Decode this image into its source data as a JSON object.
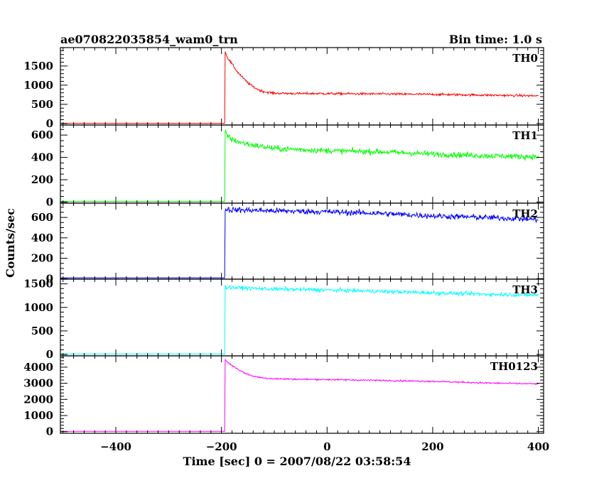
{
  "header": {
    "title": "ae070822035854_wam0_trn",
    "bin_time": "Bin time: 1.0 s"
  },
  "x_axis": {
    "label": "Time [sec] 0 = 2007/08/22 03:58:54",
    "range": [
      -505,
      410
    ],
    "major_ticks": [
      -400,
      -200,
      0,
      200,
      400
    ],
    "minor_step": 20
  },
  "y_axis": {
    "label": "Counts/sec"
  },
  "chart_data": {
    "type": "line",
    "title": "ae070822035854_wam0_trn",
    "xlabel": "Time [sec] 0 = 2007/08/22 03:58:54",
    "ylabel": "Counts/sec",
    "bin_time_s": 1.0,
    "x_range": [
      -505,
      410
    ],
    "trigger_time": -193,
    "panels": [
      {
        "name": "TH0",
        "color": "#ff0000",
        "ylim": [
          -40,
          1980
        ],
        "yticks": [
          0,
          500,
          1000,
          1500
        ],
        "minor_step": 100,
        "x": [
          -505,
          -194,
          -193,
          -190,
          -180,
          -170,
          -160,
          -150,
          -140,
          -130,
          -120,
          -100,
          -80,
          -50,
          0,
          100,
          200,
          300,
          400
        ],
        "y": [
          5,
          5,
          1900,
          1750,
          1550,
          1350,
          1200,
          1060,
          960,
          880,
          830,
          790,
          785,
          780,
          780,
          770,
          760,
          740,
          720
        ],
        "noise": 30
      },
      {
        "name": "TH1",
        "color": "#00ff00",
        "ylim": [
          -10,
          690
        ],
        "yticks": [
          0,
          200,
          400,
          600
        ],
        "minor_step": 50,
        "x": [
          -505,
          -194,
          -193,
          -190,
          -180,
          -160,
          -140,
          -120,
          -100,
          0,
          100,
          200,
          300,
          400
        ],
        "y": [
          5,
          5,
          630,
          600,
          560,
          530,
          510,
          495,
          480,
          460,
          450,
          430,
          415,
          405
        ],
        "noise": 25
      },
      {
        "name": "TH2",
        "color": "#0000ff",
        "ylim": [
          -5,
          740
        ],
        "yticks": [
          0,
          200,
          400,
          600
        ],
        "minor_step": 50,
        "x": [
          -505,
          -194,
          -193,
          -180,
          -100,
          0,
          100,
          200,
          300,
          400
        ],
        "y": [
          8,
          8,
          680,
          675,
          665,
          655,
          640,
          615,
          600,
          580
        ],
        "noise": 28
      },
      {
        "name": "TH3",
        "color": "#00ffff",
        "ylim": [
          -30,
          1600
        ],
        "yticks": [
          0,
          500,
          1000,
          1500
        ],
        "minor_step": 100,
        "x": [
          -505,
          -194,
          -193,
          -180,
          -100,
          0,
          100,
          200,
          300,
          400
        ],
        "y": [
          10,
          10,
          1430,
          1420,
          1390,
          1370,
          1340,
          1310,
          1280,
          1260
        ],
        "noise": 40
      },
      {
        "name": "TH0123",
        "color": "#ff00ff",
        "ylim": [
          -100,
          4700
        ],
        "yticks": [
          0,
          1000,
          2000,
          3000,
          4000
        ],
        "minor_step": 200,
        "x": [
          -505,
          -194,
          -193,
          -190,
          -180,
          -170,
          -160,
          -150,
          -140,
          -130,
          -120,
          -100,
          -50,
          0,
          100,
          200,
          300,
          400
        ],
        "y": [
          20,
          20,
          4450,
          4350,
          4100,
          3900,
          3700,
          3550,
          3450,
          3380,
          3330,
          3280,
          3250,
          3230,
          3180,
          3120,
          3020,
          2960
        ],
        "noise": 45
      }
    ]
  }
}
